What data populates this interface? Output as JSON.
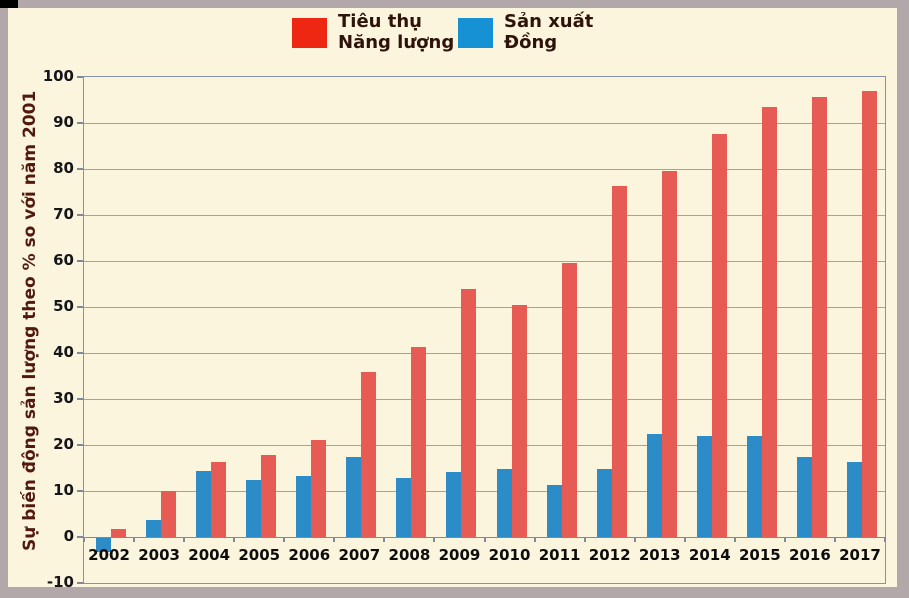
{
  "colors": {
    "frame": "#b2a7a9",
    "panel_background": "#fcf5de",
    "gridline": "#98a3b8",
    "axis": "#7e89a0",
    "bar_energy": "#e65c55",
    "bar_copper": "#2b8cc7",
    "legend_energy_swatch": "#ee2712",
    "legend_copper_swatch": "#1591d4",
    "y_title_text": "#511a0d",
    "tick_text": "#15161a",
    "legend_text": "#2e130b"
  },
  "legend": {
    "items": [
      {
        "line1": "Tiêu thụ",
        "line2": "Năng lượng",
        "color": "#ee2712"
      },
      {
        "line1": "Sản xuất",
        "line2": "Đồng",
        "color": "#1591d4"
      }
    ]
  },
  "chart_data": {
    "type": "bar",
    "title": "",
    "xlabel": "",
    "ylabel": "Sự biến động sản lượng theo % so với năm 2001",
    "ylim": [
      -10,
      100
    ],
    "ytick_step": 10,
    "yticks": [
      100,
      90,
      80,
      70,
      60,
      50,
      40,
      30,
      20,
      10,
      0,
      -10
    ],
    "grid": true,
    "legend_position": "top",
    "categories": [
      "2002",
      "2003",
      "2004",
      "2005",
      "2006",
      "2007",
      "2008",
      "2009",
      "2010",
      "2011",
      "2012",
      "2013",
      "2014",
      "2015",
      "2016",
      "2017"
    ],
    "series": [
      {
        "name": "Tiêu thụ Năng lượng",
        "color": "#e65c55",
        "values": [
          1.8,
          10,
          16.4,
          17.8,
          21,
          35.8,
          41.3,
          54,
          50.5,
          59.6,
          76.4,
          79.6,
          87.7,
          93.4,
          95.6,
          97
        ]
      },
      {
        "name": "Sản xuất Đồng",
        "color": "#2b8cc7",
        "values": [
          -3,
          3.7,
          14.3,
          12.4,
          13.3,
          17.4,
          12.8,
          14.2,
          14.7,
          11.2,
          14.8,
          22.3,
          22,
          21.9,
          17.4,
          16.3
        ]
      }
    ]
  }
}
